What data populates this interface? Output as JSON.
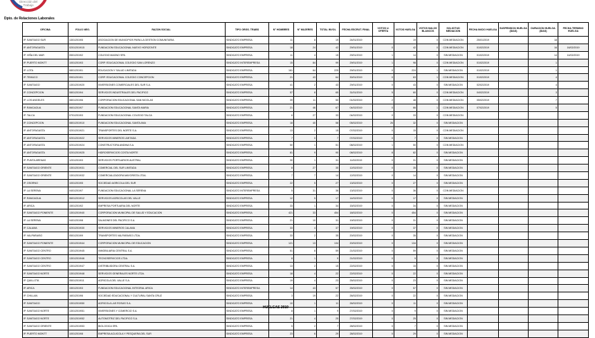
{
  "header": {
    "logo_text": [
      "Dirección del",
      "Trabajo"
    ],
    "department": "Dpto. de Relaciones Laborales"
  },
  "table": {
    "columns": [
      "OFICINA",
      "FOLIO NEG.",
      "RAZON SOCIAL",
      "TIPO ORGS. TRABS",
      "N° HOMBRES",
      "N° MUJERES",
      "TOTAL INVOL",
      "FECHA ESCRUT. FINAL",
      "VOTOS U. OFERTA",
      "VOTOS HUELGA",
      "VOTOS NULOS BLANCOS",
      "SOLICITUD MEDIACION",
      "FECHA INICIO HUELGA",
      "SUSPENSION HUELGA (DIAS)",
      "DURACION HUELGA (DIAS)",
      "FECHA TERMINO HUELGA"
    ],
    "rows": [
      [
        "IP. SANTIAGO SUR",
        "1301/2019/5",
        "ASOCIACION DE MUNICIPIOS PARA LA GESTION COMUNITARIA",
        "SINDICATO EMPRESA",
        "11",
        "8",
        "19",
        "24/01/2019",
        "",
        "19",
        "0",
        "CON MEDIACION",
        "25/01/2019",
        "",
        "18",
        ""
      ],
      [
        "IP. ANTOFAGASTA",
        "0201/2019/15",
        "FUNDACION EDUCACIONAL NUEVO HORIZONTE",
        "SINDICATO EMPRESA",
        "18",
        "24",
        "42",
        "29/01/2019",
        "0",
        "42",
        "0",
        "CON MEDIACION",
        "01/02/2019",
        "",
        "16",
        "16/02/2019"
      ],
      [
        "IP. VIÑA DEL MAR",
        "0501/2019/2",
        "COLEGIO MAGNO SPA",
        "SINDICATO EMPRESA",
        "11",
        "4",
        "15",
        "29/01/2019",
        "1",
        "14",
        "0",
        "SIN MEDIACION",
        "01/02/2019",
        "",
        "14",
        "14/02/2019"
      ],
      [
        "IP. PUERTO MONTT",
        "1001/2019/3",
        "CORP. EDUCACIONAL COLEGIO SAN LORENZO",
        "SINDICATO INTEREMPRESA",
        "15",
        "84",
        "99",
        "29/01/2019",
        "1",
        "98",
        "0",
        "CON MEDIACION",
        "01/02/2019",
        "",
        "1",
        ""
      ],
      [
        "IP. LOTA",
        "0801/2019/1",
        "EDUCACION Y SALUD LIMITADA",
        "SINDICATO EMPRESA",
        "161",
        "64",
        "225",
        "29/01/2019",
        "0",
        "224",
        "1",
        "SIN MEDIACION",
        "01/02/2019",
        "",
        "1",
        ""
      ],
      [
        "IP. TEMUCO",
        "0901/2019/1",
        "CORP. EDUCACIONAL COLEGIO CONCEPCION",
        "SINDICATO EMPRESA",
        "21",
        "43",
        "64",
        "30/01/2019",
        "0",
        "63",
        "1",
        "CON MEDIACION",
        "01/02/2019",
        "",
        "4",
        ""
      ],
      [
        "IP. SANTIAGO",
        "1301/2019/20",
        "INVERSIONES COMERCIALES DEL SUR S.A.",
        "SINDICATO EMPRESA",
        "41",
        "2",
        "43",
        "29/01/2019",
        "0",
        "43",
        "0",
        "SIN MEDIACION",
        "02/02/2019",
        "",
        "4",
        ""
      ],
      [
        "IP. CONCEPCION",
        "0801/2019/4",
        "SERVICIOS INDUSTRIALES DEL PACIFICO",
        "SINDICATO EMPRESA",
        "57",
        "8",
        "65",
        "31/01/2019",
        "5",
        "60",
        "0",
        "CON MEDIACION",
        "04/02/2019",
        "",
        "3",
        ""
      ],
      [
        "IP. LOS ANGELES",
        "0801/2019/6",
        "CORPORACION EDUCACIONAL SAN NICOLAS",
        "SINDICATO EMPRESA",
        "39",
        "11",
        "50",
        "01/02/2019",
        "2",
        "48",
        "0",
        "CON MEDIACION",
        "05/02/2019",
        "",
        "7",
        ""
      ],
      [
        "IP. RANCAGUA",
        "0601/2019/7",
        "FUNDACION EDUCACIONAL SANTA MARIA",
        "SINDICATO EMPRESA",
        "21",
        "46",
        "67",
        "04/02/2019",
        "0",
        "66",
        "1",
        "CON MEDIACION",
        "07/02/2019",
        "",
        "5",
        ""
      ],
      [
        "IP. TALCA",
        "0701/2019/3",
        "FUNDACION EDUCACIONAL COLEGIO TALCA",
        "SINDICATO EMPRESA",
        "6",
        "27",
        "33",
        "04/02/2019",
        "0",
        "33",
        "0",
        "CON MEDIACION",
        "",
        "",
        "",
        ""
      ],
      [
        "IP. CONCEPCION",
        "0801/2019/10",
        "FUNDACION EDUCACIONAL SANTA ANA",
        "SINDICATO EMPRESA",
        "18",
        "40",
        "58",
        "05/02/2019",
        "26",
        "32",
        "0",
        "SIN MEDIACION",
        "",
        "",
        "",
        ""
      ],
      [
        "IP. ANTOFAGASTA",
        "0201/2019/21",
        "TRANSPORTES DEL NORTE S.A.",
        "SINDICATO EMPRESA",
        "13",
        "2",
        "15",
        "07/02/2019",
        "0",
        "15",
        "0",
        "CON MEDIACION",
        "",
        "",
        "",
        ""
      ],
      [
        "IP. ANTOFAGASTA",
        "0201/2019/22",
        "SERVICIOS MINEROS LIMITADA",
        "SINDICATO EMPRESA",
        "7",
        "0",
        "7",
        "07/02/2019",
        "0",
        "7",
        "0",
        "SIN MEDIACION",
        "",
        "",
        "",
        ""
      ],
      [
        "IP. ANTOFAGASTA",
        "0201/2019/24",
        "CONSTRUCTORA ANDINA S.A.",
        "SINDICATO EMPRESA",
        "50",
        "1",
        "51",
        "08/02/2019",
        "1",
        "50",
        "0",
        "CON MEDIACION",
        "",
        "",
        "",
        ""
      ],
      [
        "IP. ANTOFAGASTA",
        "0201/2019/25",
        "HIDROSERVICIOS COSTA NORTE",
        "SINDICATO EMPRESA",
        "81",
        "9",
        "90",
        "08/02/2019",
        "8",
        "82",
        "0",
        "SIN MEDIACION",
        "",
        "",
        "",
        ""
      ],
      [
        "IP. PUNTA ARENAS",
        "1201/2019/3",
        "SERVICIOS PORTUARIOS AUSTRAL",
        "SINDICATO EMPRESA",
        "30",
        "1",
        "31",
        "11/02/2019",
        "0",
        "31",
        "0",
        "SIN MEDIACION",
        "",
        "",
        "",
        ""
      ],
      [
        "IP. SANTIAGO ORIENTE",
        "1301/2019/31",
        "COMERCIAL DEL SUR LIMITADA",
        "SINDICATO EMPRESA",
        "8",
        "27",
        "35",
        "12/02/2019",
        "0",
        "35",
        "0",
        "SIN MEDIACION",
        "",
        "",
        "",
        ""
      ],
      [
        "IP. SANTIAGO ORIENTE",
        "1301/2019/32",
        "COMERCIALIZADORA MAYORISTA LTDA.",
        "SINDICATO EMPRESA",
        "7",
        "7",
        "14",
        "12/02/2019",
        "0",
        "14",
        "0",
        "SIN MEDIACION",
        "",
        "",
        "",
        ""
      ],
      [
        "IP. OSORNO",
        "1001/2019/5",
        "SOCIEDAD AGRICOLA DEL SUR",
        "SINDICATO EMPRESA",
        "22",
        "5",
        "27",
        "13/02/2019",
        "0",
        "27",
        "0",
        "SIN MEDIACION",
        "",
        "",
        "",
        ""
      ],
      [
        "IP. LA SERENA",
        "0401/2019/7",
        "FUNDACION EDUCACIONAL LA SERENA",
        "SINDICATO INTEREMPRESA",
        "5",
        "31",
        "36",
        "13/02/2019",
        "0",
        "36",
        "0",
        "CON MEDIACION",
        "",
        "",
        "",
        ""
      ],
      [
        "IP. RANCAGUA",
        "0601/2019/12",
        "SERVICIOS AGRICOLAS DEL VALLE",
        "SINDICATO EMPRESA",
        "12",
        "5",
        "17",
        "14/02/2019",
        "0",
        "17",
        "0",
        "SIN MEDIACION",
        "",
        "",
        "",
        ""
      ],
      [
        "IP. ARICA",
        "1501/2019/2",
        "EMPRESA PORTUARIA DEL NORTE",
        "SINDICATO EMPRESA",
        "33",
        "1",
        "34",
        "15/02/2019",
        "0",
        "34",
        "0",
        "SIN MEDIACION",
        "",
        "",
        "",
        ""
      ],
      [
        "IP. SANTIAGO PONIENTE",
        "1301/2019/40",
        "CORPORACION MUNICIPAL DE SALUD Y EDUCACION",
        "SINDICATO EMPRESA",
        "421",
        "33",
        "454",
        "18/02/2019",
        "0",
        "454",
        "0",
        "SIN MEDIACION",
        "",
        "",
        "",
        ""
      ],
      [
        "IP. LA SERENA",
        "0401/2019/8",
        "SALMONES DEL PACIFICO S.A.",
        "SINDICATO EMPRESA",
        "21",
        "10",
        "31",
        "19/02/2019",
        "0",
        "31",
        "0",
        "SIN MEDIACION",
        "",
        "",
        "",
        ""
      ],
      [
        "IP. CALAMA",
        "0201/2019/30",
        "SERVICIOS MINEROS CALAMA",
        "SINDICATO EMPRESA",
        "33",
        "4",
        "37",
        "19/02/2019",
        "0",
        "37",
        "0",
        "SIN MEDIACION",
        "",
        "",
        "",
        ""
      ],
      [
        "IP. VALPARAISO",
        "0501/2019/9",
        "TRANSPORTES VALPARAISO LTDA.",
        "SINDICATO EMPRESA",
        "33",
        "2",
        "35",
        "20/02/2019",
        "0",
        "35",
        "0",
        "SIN MEDIACION",
        "",
        "",
        "",
        ""
      ],
      [
        "IP. SANTIAGO PONIENTE",
        "1301/2019/44",
        "CORPORACION MUNICIPAL DE EDUCACION",
        "SINDICATO EMPRESA",
        "121",
        "13",
        "134",
        "20/02/2019",
        "0",
        "134",
        "0",
        "SIN MEDIACION",
        "",
        "",
        "",
        ""
      ],
      [
        "IP. SANTIAGO CENTRO",
        "1301/2019/45",
        "INMOBILIARIA CENTRAL S.A.",
        "SINDICATO EMPRESA",
        "51",
        "8",
        "59",
        "21/02/2019",
        "0",
        "59",
        "0",
        "SIN MEDIACION",
        "",
        "",
        "",
        ""
      ],
      [
        "IP. SANTIAGO CENTRO",
        "1301/2019/46",
        "TECNOSERVICIOS LTDA.",
        "SINDICATO EMPRESA",
        "8",
        "1",
        "9",
        "21/02/2019",
        "0",
        "9",
        "0",
        "SIN MEDIACION",
        "",
        "",
        "",
        ""
      ],
      [
        "IP. SANTIAGO CENTRO",
        "1301/2019/47",
        "DISTRIBUIDORA CENTRAL S.A.",
        "SINDICATO EMPRESA",
        "13",
        "2",
        "15",
        "22/02/2019",
        "0",
        "15",
        "0",
        "SIN MEDIACION",
        "",
        "",
        "",
        ""
      ],
      [
        "IP. SANTIAGO NORTE",
        "1301/2019/48",
        "SERVICIOS GENERALES NORTE LTDA.",
        "SINDICATO EMPRESA",
        "18",
        "4",
        "22",
        "22/02/2019",
        "0",
        "22",
        "0",
        "SIN MEDIACION",
        "",
        "",
        "",
        ""
      ],
      [
        "IP. QUILLOTA",
        "0501/2019/11",
        "AGRICOLA DEL VALLE S.A.",
        "SINDICATO EMPRESA",
        "19",
        "4",
        "23",
        "25/02/2019",
        "0",
        "23",
        "0",
        "SIN MEDIACION",
        "",
        "",
        "",
        ""
      ],
      [
        "IP. ARICA",
        "1501/2019/3",
        "FUNDACION EDUCACIONAL INTEGRAL ARICA",
        "SINDICATO INTEREMPRESA",
        "14",
        "43",
        "57",
        "25/02/2019",
        "0",
        "57",
        "0",
        "SIN MEDIACION",
        "",
        "",
        "",
        ""
      ],
      [
        "IP. CHILLAN",
        "1601/2019/6",
        "SOCIEDAD EDUCACIONAL Y CULTURAL SANTA CRUZ",
        "SINDICATO EMPRESA",
        "3",
        "19",
        "22",
        "26/02/2019",
        "0",
        "22",
        "0",
        "SIN MEDIACION",
        "",
        "",
        "",
        ""
      ],
      [
        "IP. SANTIAGO",
        "1301/2019/50",
        "AGRICOLA LAS ROSAS S.A.",
        "SINDICATO EMPRESA",
        "10",
        "1",
        "11",
        "26/02/2019",
        "0",
        "11",
        "0",
        "SIN MEDIACION",
        "",
        "",
        "",
        ""
      ],
      [
        "IP. SANTIAGO NORTE",
        "1301/2019/51",
        "INVERSIONES Y COMERCIO S.A.",
        "SINDICATO EMPRESA",
        "8",
        "1",
        "9",
        "27/02/2019",
        "0",
        "9",
        "0",
        "SIN MEDIACION",
        "",
        "",
        "",
        ""
      ],
      [
        "IP. SANTIAGO NORTE",
        "1301/2019/52",
        "AUTOMOTRIZ DEL PACIFICO S.A.",
        "SINDICATO EMPRESA",
        "21",
        "4",
        "25",
        "27/02/2019",
        "0",
        "25",
        "0",
        "SIN MEDIACION",
        "",
        "",
        "",
        ""
      ],
      [
        "IP. SANTIAGO ORIENTE",
        "1301/2019/53",
        "BIOLOGICA SPA",
        "SINDICATO EMPRESA",
        "5",
        "2",
        "7",
        "28/02/2019",
        "0",
        "7",
        "0",
        "SIN MEDIACION",
        "",
        "",
        "",
        ""
      ],
      [
        "IP. PUERTO MONTT",
        "1001/2019/8",
        "EMPRESA ACUICOLA Y PESQUERA DEL SUR",
        "SINDICATO EMPRESA",
        "23",
        "6",
        "29",
        "28/02/2019",
        "0",
        "29",
        "0",
        "SIN MEDIACION",
        "",
        "",
        "",
        ""
      ]
    ]
  },
  "footer": "HUELGAS 2019"
}
